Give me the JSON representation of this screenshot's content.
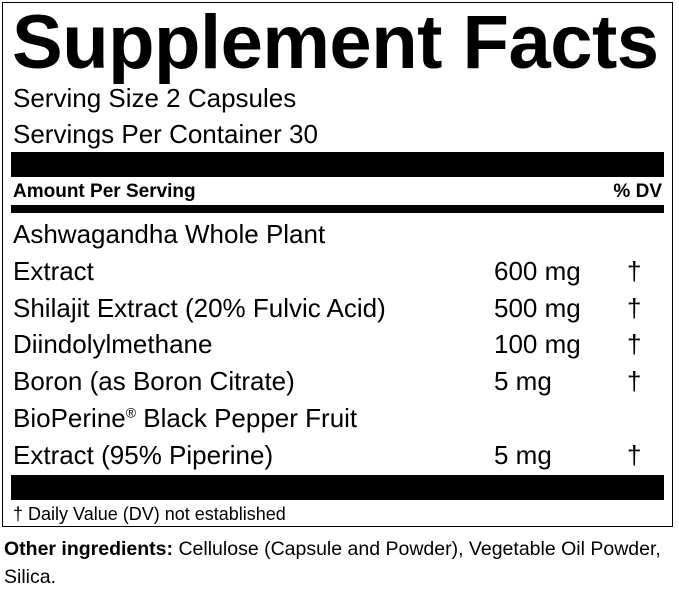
{
  "title": "Supplement Facts",
  "serving_size": "Serving Size 2 Capsules",
  "servings_per_container": "Servings Per Container 30",
  "header": {
    "amount_per_serving": "Amount Per Serving",
    "dv": "% DV"
  },
  "rows": [
    {
      "name_line1": "Ashwagandha Whole Plant",
      "name_line2": "Extract",
      "amount": "600 mg",
      "dv": "†"
    },
    {
      "name": "Shilajit Extract (20% Fulvic Acid)",
      "amount": "500 mg",
      "dv": "†"
    },
    {
      "name": "Diindolylmethane",
      "amount": "100 mg",
      "dv": "†"
    },
    {
      "name": "Boron (as Boron Citrate)",
      "amount": "5 mg",
      "dv": "†"
    },
    {
      "name_line1_a": "BioPerine",
      "name_line1_reg": "®",
      "name_line1_b": " Black Pepper Fruit",
      "name_line2": "Extract (95% Piperine)",
      "amount": "5 mg",
      "dv": "†"
    }
  ],
  "footnote": "† Daily Value (DV) not established",
  "other_ingredients": {
    "label": "Other ingredients:",
    "text": " Cellulose (Capsule and Powder), Vegetable Oil Powder, Silica."
  }
}
